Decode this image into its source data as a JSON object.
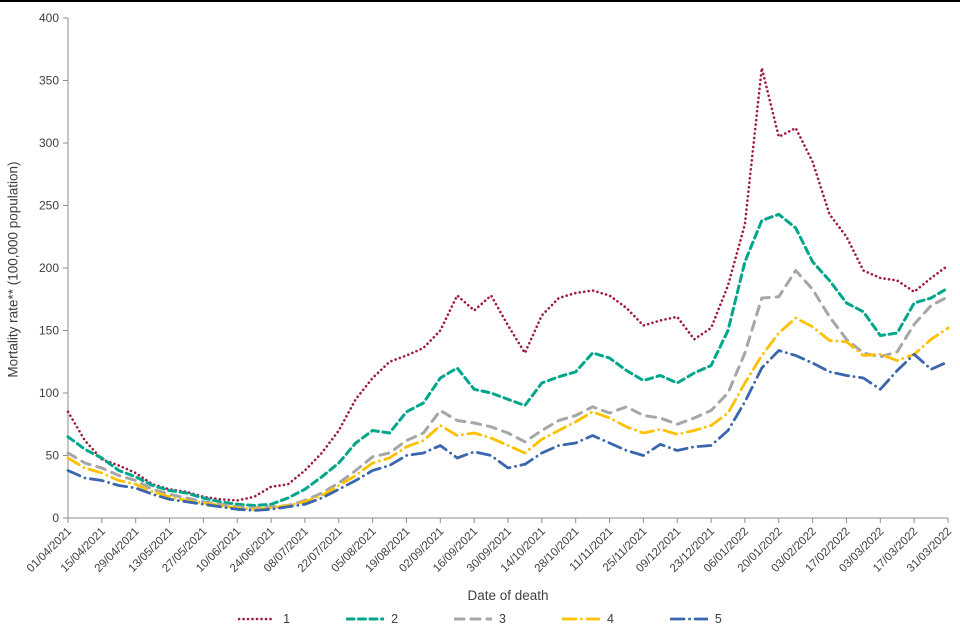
{
  "window": {
    "background_color": "#ffffff",
    "top_border_color": "#000000"
  },
  "chart": {
    "y_axis": {
      "title": "Mortality rate** (100,000 population)",
      "min": 0,
      "max": 400,
      "tick_interval": 50,
      "tick_labels": [
        "0",
        "50",
        "100",
        "150",
        "200",
        "250",
        "300",
        "350",
        "400"
      ]
    },
    "x_axis": {
      "title": "Date of death",
      "tick_labels": [
        "01/04/2021",
        "15/04/2021",
        "29/04/2021",
        "13/05/2021",
        "27/05/2021",
        "10/06/2021",
        "24/06/2021",
        "08/07/2021",
        "22/07/2021",
        "05/08/2021",
        "19/08/2021",
        "02/09/2021",
        "16/09/2021",
        "30/09/2021",
        "14/10/2021",
        "28/10/2021",
        "11/11/2021",
        "25/11/2021",
        "09/12/2021",
        "23/12/2021",
        "06/01/2022",
        "20/01/2022",
        "03/02/2022",
        "17/02/2022",
        "03/03/2022",
        "17/03/2022",
        "31/03/2022"
      ]
    },
    "legend_labels": [
      "1",
      "2",
      "3",
      "4",
      "5"
    ],
    "axis_color": "#8c8c8c",
    "text_color": "#3f3f3f"
  },
  "chart_data": {
    "type": "line",
    "title": "",
    "xlabel": "Date of death",
    "ylabel": "Mortality rate** (100,000 population)",
    "ylim": [
      0,
      400
    ],
    "grid": false,
    "legend_position": "bottom",
    "x_start": "01/04/2021",
    "x_end": "31/03/2022",
    "sample_interval_days": 7,
    "x_tick_labels": [
      "01/04/2021",
      "15/04/2021",
      "29/04/2021",
      "13/05/2021",
      "27/05/2021",
      "10/06/2021",
      "24/06/2021",
      "08/07/2021",
      "22/07/2021",
      "05/08/2021",
      "19/08/2021",
      "02/09/2021",
      "16/09/2021",
      "30/09/2021",
      "14/10/2021",
      "28/10/2021",
      "11/11/2021",
      "25/11/2021",
      "09/12/2021",
      "23/12/2021",
      "06/01/2022",
      "20/01/2022",
      "03/02/2022",
      "17/02/2022",
      "03/03/2022",
      "17/03/2022",
      "31/03/2022"
    ],
    "series": [
      {
        "name": "1",
        "color": "#9e1b42",
        "line_style": "dot",
        "values": [
          85,
          62,
          47,
          42,
          36,
          27,
          23,
          21,
          17,
          15,
          14,
          17,
          25,
          27,
          38,
          52,
          70,
          95,
          112,
          125,
          130,
          136,
          150,
          178,
          166,
          178,
          154,
          132,
          162,
          176,
          180,
          182,
          178,
          168,
          154,
          158,
          161,
          143,
          152,
          186,
          235,
          360,
          305,
          312,
          285,
          243,
          225,
          198,
          192,
          190,
          181,
          192,
          202
        ]
      },
      {
        "name": "2",
        "color": "#00a68c",
        "line_style": "dash",
        "values": [
          65,
          55,
          48,
          38,
          33,
          26,
          22,
          20,
          16,
          13,
          11,
          10,
          11,
          16,
          23,
          33,
          44,
          60,
          70,
          68,
          85,
          92,
          112,
          120,
          103,
          100,
          95,
          90,
          108,
          113,
          117,
          132,
          128,
          118,
          110,
          114,
          108,
          116,
          122,
          150,
          205,
          238,
          243,
          232,
          205,
          190,
          172,
          165,
          146,
          148,
          172,
          176,
          184
        ]
      },
      {
        "name": "3",
        "color": "#a6a6a6",
        "line_style": "long-dash",
        "values": [
          52,
          44,
          40,
          34,
          30,
          23,
          19,
          16,
          13,
          11,
          9,
          8,
          9,
          10,
          14,
          20,
          28,
          38,
          49,
          52,
          62,
          68,
          86,
          78,
          76,
          73,
          68,
          61,
          70,
          78,
          82,
          89,
          84,
          89,
          82,
          80,
          75,
          80,
          86,
          100,
          132,
          176,
          177,
          198,
          183,
          161,
          143,
          132,
          129,
          133,
          155,
          170,
          177
        ]
      },
      {
        "name": "4",
        "color": "#ffc000",
        "line_style": "long-dash-dot",
        "values": [
          48,
          40,
          36,
          30,
          27,
          21,
          17,
          14,
          12,
          10,
          8,
          7,
          8,
          10,
          13,
          18,
          26,
          34,
          44,
          48,
          57,
          62,
          74,
          66,
          68,
          64,
          58,
          52,
          63,
          70,
          77,
          85,
          80,
          73,
          68,
          71,
          67,
          70,
          74,
          84,
          108,
          130,
          148,
          160,
          153,
          142,
          141,
          130,
          131,
          126,
          131,
          143,
          152
        ]
      },
      {
        "name": "5",
        "color": "#3a66ad",
        "line_style": "long-dash-dot",
        "values": [
          38,
          32,
          30,
          26,
          24,
          19,
          15,
          13,
          11,
          9,
          7,
          6,
          7,
          9,
          11,
          16,
          23,
          30,
          38,
          42,
          50,
          52,
          58,
          48,
          53,
          50,
          40,
          43,
          52,
          58,
          60,
          66,
          60,
          54,
          50,
          59,
          54,
          57,
          58,
          70,
          93,
          120,
          134,
          130,
          124,
          117,
          114,
          112,
          103,
          118,
          131,
          119,
          125
        ]
      }
    ]
  }
}
